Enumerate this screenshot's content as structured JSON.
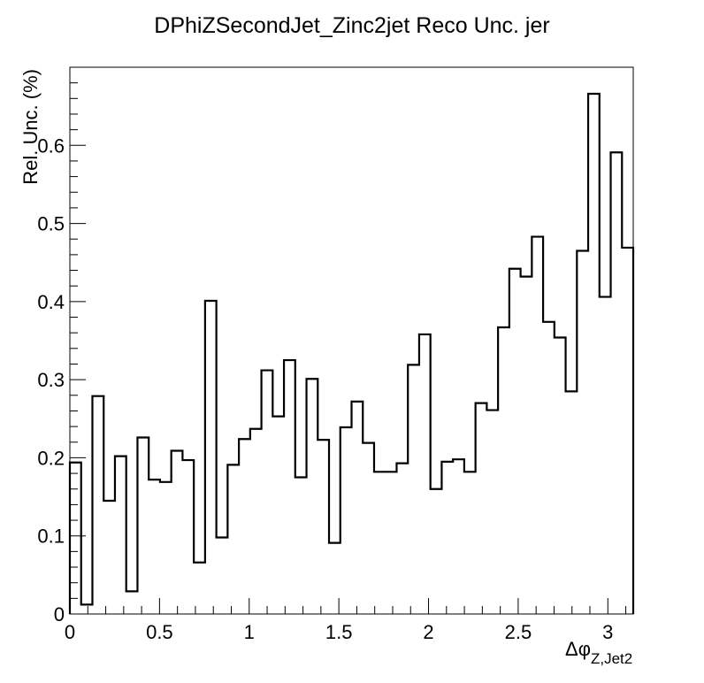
{
  "chart_data": {
    "type": "line",
    "style": "step-histogram",
    "title": "DPhiZSecondJet_Zinc2jet Reco Unc. jer",
    "ylabel": "Rel. Unc. (%)",
    "xlabel": "Δφ",
    "xlabel_subscript": "Z,Jet2",
    "xlim": [
      0,
      3.1416
    ],
    "ylim": [
      0,
      0.7
    ],
    "x_ticks": [
      "0",
      "0.5",
      "1",
      "1.5",
      "2",
      "2.5",
      "3"
    ],
    "y_ticks": [
      "0",
      "0.1",
      "0.2",
      "0.3",
      "0.4",
      "0.5",
      "0.6"
    ],
    "grid": false,
    "legend": "none",
    "bin_width": 0.0628,
    "values": [
      0.194,
      0.012,
      0.279,
      0.145,
      0.202,
      0.029,
      0.226,
      0.172,
      0.169,
      0.209,
      0.197,
      0.066,
      0.401,
      0.098,
      0.191,
      0.224,
      0.237,
      0.312,
      0.253,
      0.325,
      0.175,
      0.301,
      0.223,
      0.091,
      0.239,
      0.272,
      0.219,
      0.182,
      0.182,
      0.193,
      0.319,
      0.358,
      0.16,
      0.195,
      0.198,
      0.182,
      0.27,
      0.261,
      0.367,
      0.442,
      0.432,
      0.483,
      0.374,
      0.354,
      0.285,
      0.465,
      0.666,
      0.406,
      0.591,
      0.469
    ]
  }
}
